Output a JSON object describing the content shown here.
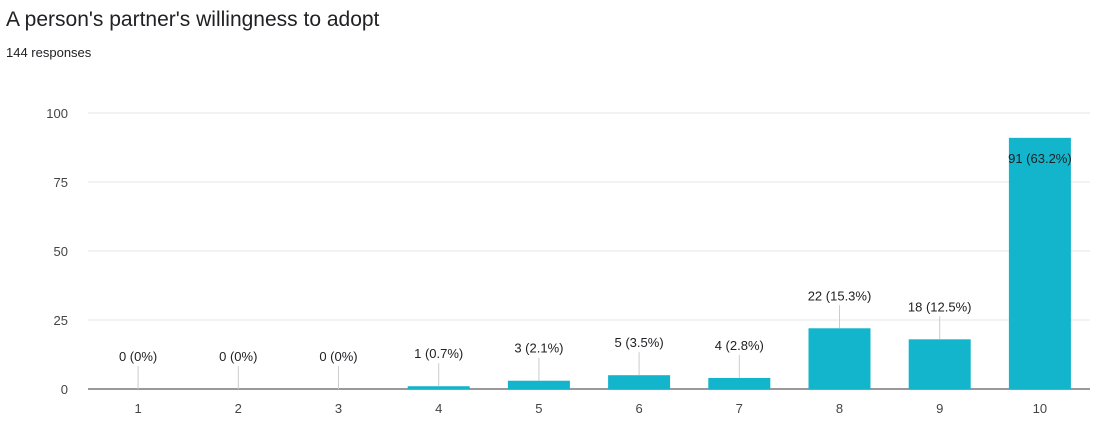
{
  "header": {
    "title": "A person's partner's willingness to adopt",
    "subtitle": "144 responses"
  },
  "chart_data": {
    "type": "bar",
    "title": "A person's partner's willingness to adopt",
    "subtitle": "144 responses",
    "categories": [
      "1",
      "2",
      "3",
      "4",
      "5",
      "6",
      "7",
      "8",
      "9",
      "10"
    ],
    "values": [
      0,
      0,
      0,
      1,
      3,
      5,
      4,
      22,
      18,
      91
    ],
    "labels": [
      "0 (0%)",
      "0 (0%)",
      "0 (0%)",
      "1 (0.7%)",
      "3 (2.1%)",
      "5 (3.5%)",
      "4 (2.8%)",
      "22 (15.3%)",
      "18 (12.5%)",
      "91 (63.2%)"
    ],
    "yticks": [
      0,
      25,
      50,
      75,
      100
    ],
    "ylim": [
      0,
      100
    ],
    "xlabel": "",
    "ylabel": "",
    "grid": true,
    "bar_color": "#12b5cb"
  }
}
